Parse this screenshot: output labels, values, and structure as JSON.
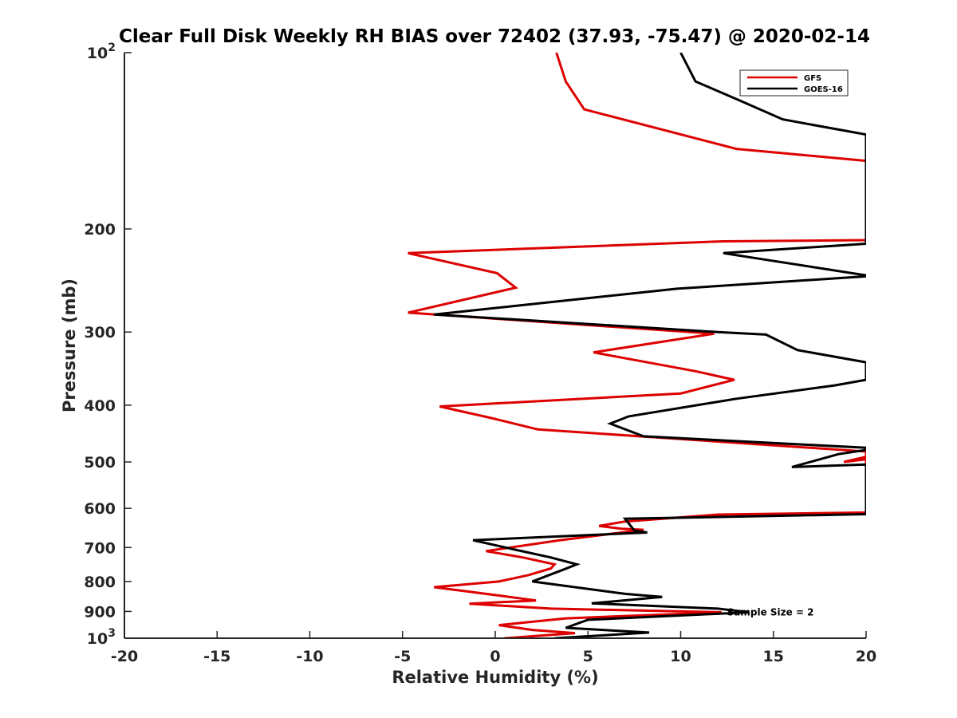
{
  "chart_data": {
    "type": "line",
    "title": "Clear Full Disk Weekly RH BIAS over 72402 (37.93, -75.47) @ 2020-02-14",
    "xlabel": "Relative Humidity (%)",
    "ylabel": "Pressure (mb)",
    "xlim": [
      -20,
      20
    ],
    "ylim": [
      100,
      1000
    ],
    "yscale": "log",
    "y_reversed": true,
    "x_ticks": [
      -20,
      -15,
      -10,
      -5,
      0,
      5,
      10,
      15,
      20
    ],
    "x_tick_labels": [
      "-20",
      "-15",
      "-10",
      "-5",
      "0",
      "5",
      "10",
      "15",
      "20"
    ],
    "y_ticks": [
      100,
      200,
      300,
      400,
      500,
      600,
      700,
      800,
      900,
      1000
    ],
    "y_tick_labels": [
      {
        "base": "10",
        "exp": "2"
      },
      {
        "base": "200",
        "exp": ""
      },
      {
        "base": "300",
        "exp": ""
      },
      {
        "base": "400",
        "exp": ""
      },
      {
        "base": "500",
        "exp": ""
      },
      {
        "base": "600",
        "exp": ""
      },
      {
        "base": "700",
        "exp": ""
      },
      {
        "base": "800",
        "exp": ""
      },
      {
        "base": "900",
        "exp": ""
      },
      {
        "base": "10",
        "exp": "3"
      }
    ],
    "legend_position": "top-right",
    "grid": false,
    "annotation": "Sample Size = 2",
    "annotation_at": {
      "x": 12.5,
      "y": 900
    },
    "series": [
      {
        "name": "GFS",
        "color": "#dd0000",
        "points": [
          [
            3.3,
            100
          ],
          [
            3.8,
            112
          ],
          [
            4.8,
            125
          ],
          [
            13.0,
            146
          ],
          [
            20.0,
            153
          ],
          [
            20.0,
            208
          ],
          [
            20.0,
            209
          ],
          [
            12.3,
            210
          ],
          [
            -4.7,
            220
          ],
          [
            0.1,
            238
          ],
          [
            1.1,
            252
          ],
          [
            -4.7,
            278
          ],
          [
            11.8,
            302
          ],
          [
            5.3,
            325
          ],
          [
            10.8,
            350
          ],
          [
            12.9,
            362
          ],
          [
            10.0,
            382
          ],
          [
            -3.0,
            402
          ],
          [
            -0.3,
            420
          ],
          [
            2.3,
            440
          ],
          [
            20.0,
            480
          ],
          [
            20.0,
            490
          ],
          [
            18.8,
            500
          ],
          [
            20.0,
            495
          ],
          [
            20.0,
            610
          ],
          [
            12.0,
            615
          ],
          [
            7.0,
            632
          ],
          [
            5.6,
            643
          ],
          [
            6.8,
            650
          ],
          [
            8.0,
            653
          ],
          [
            3.5,
            680
          ],
          [
            -0.5,
            710
          ],
          [
            1.5,
            728
          ],
          [
            3.2,
            748
          ],
          [
            3.0,
            760
          ],
          [
            1.8,
            780
          ],
          [
            0.2,
            800
          ],
          [
            -3.3,
            818
          ],
          [
            0.5,
            848
          ],
          [
            2.2,
            862
          ],
          [
            -1.4,
            873
          ],
          [
            3.0,
            890
          ],
          [
            12.2,
            903
          ],
          [
            3.8,
            925
          ],
          [
            0.2,
            950
          ],
          [
            2.0,
            968
          ],
          [
            4.3,
            980
          ],
          [
            0.5,
            1000
          ]
        ]
      },
      {
        "name": "GOES-16",
        "color": "#000000",
        "points": [
          [
            10.0,
            100
          ],
          [
            10.8,
            112
          ],
          [
            13.0,
            120
          ],
          [
            15.5,
            130
          ],
          [
            20.0,
            138
          ],
          [
            20.0,
            212
          ],
          [
            12.3,
            220
          ],
          [
            20.0,
            240
          ],
          [
            20.0,
            241
          ],
          [
            9.8,
            253
          ],
          [
            -3.3,
            280
          ],
          [
            12.0,
            300
          ],
          [
            14.6,
            303
          ],
          [
            16.3,
            322
          ],
          [
            20.0,
            338
          ],
          [
            20.0,
            362
          ],
          [
            18.3,
            370
          ],
          [
            13.0,
            390
          ],
          [
            7.2,
            418
          ],
          [
            6.2,
            430
          ],
          [
            8.0,
            452
          ],
          [
            20.0,
            473
          ],
          [
            20.0,
            477
          ],
          [
            18.5,
            485
          ],
          [
            16.0,
            510
          ],
          [
            20.0,
            505
          ],
          [
            20.0,
            614
          ],
          [
            7.0,
            625
          ],
          [
            7.5,
            655
          ],
          [
            8.2,
            660
          ],
          [
            -1.2,
            680
          ],
          [
            1.0,
            705
          ],
          [
            3.0,
            728
          ],
          [
            4.4,
            748
          ],
          [
            3.7,
            763
          ],
          [
            2.0,
            800
          ],
          [
            7.0,
            840
          ],
          [
            9.0,
            850
          ],
          [
            5.2,
            872
          ],
          [
            12.0,
            890
          ],
          [
            13.7,
            903
          ],
          [
            5.0,
            930
          ],
          [
            3.8,
            960
          ],
          [
            8.3,
            978
          ],
          [
            3.2,
            1000
          ]
        ]
      }
    ]
  }
}
